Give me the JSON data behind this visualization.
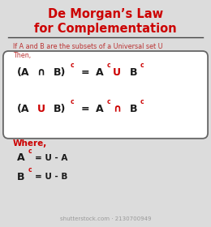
{
  "bg_color": "#dcdcdc",
  "title_line1": "De Morgan’s Law",
  "title_line2": "for Complementation",
  "title_color": "#cc0000",
  "underline_color": "#444444",
  "subtitle_line1": "If A and B are the subsets of a Universal set U",
  "subtitle_line2": "Then,",
  "subtitle_color": "#bb3333",
  "box_bg": "#ffffff",
  "box_edge": "#666666",
  "formula_black": "#1a1a1a",
  "formula_red": "#cc0000",
  "where_text": "Where,",
  "where_color": "#cc0000",
  "def_color": "#1a1a1a",
  "watermark": "shutterstock.com · 2130700949",
  "watermark_color": "#999999"
}
